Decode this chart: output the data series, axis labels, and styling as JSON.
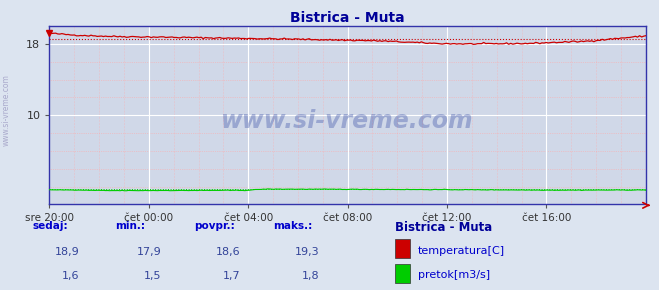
{
  "title": "Bistrica - Muta",
  "title_color": "#000099",
  "bg_color": "#d0d8e8",
  "outer_bg_color": "#c8d0e0",
  "grid_white_color": "#ffffff",
  "grid_pink_color": "#ffaaaa",
  "x_labels": [
    "sre 20:00",
    "čet 00:00",
    "čet 04:00",
    "čet 08:00",
    "čet 12:00",
    "čet 16:00"
  ],
  "x_ticks_norm": [
    0.0,
    0.1667,
    0.3333,
    0.5,
    0.6667,
    0.8333
  ],
  "y_min": 0,
  "y_max": 20,
  "temp_color": "#cc0000",
  "temp_avg": 18.6,
  "flow_color": "#00cc00",
  "flow_avg": 1.7,
  "flow_max": 1.8,
  "flow_min": 1.5,
  "temp_min": 17.9,
  "temp_max": 19.3,
  "temp_current": 18.9,
  "flow_current": 1.6,
  "watermark": "www.si-vreme.com",
  "watermark_color": "#1a3399",
  "watermark_alpha": 0.3,
  "legend_title": "Bistrica - Muta",
  "legend_title_color": "#000099",
  "legend_color": "#0000cc",
  "bottom_bg": "#dce4f0",
  "left_label": "www.si-vreme.com",
  "left_label_color": "#aaaacc",
  "spine_color": "#3333aa",
  "col_labels": [
    "sedaj:",
    "min.:",
    "povpr.:",
    "maks.:"
  ],
  "col_vals_temp": [
    "18,9",
    "17,9",
    "18,6",
    "19,3"
  ],
  "col_vals_flow": [
    "1,6",
    "1,5",
    "1,7",
    "1,8"
  ],
  "legend_temp_label": "temperatura[C]",
  "legend_flow_label": "pretok[m3/s]"
}
